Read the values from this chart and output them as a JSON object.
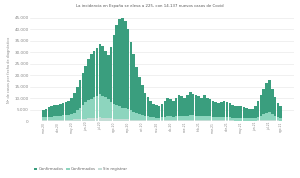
{
  "title": "La incidencia en España se eleva a 225, con 14.137 nuevos casos de Covid",
  "ylabel": "Nº de casos por fecha de diagnóstico",
  "legend_labels": [
    "Confirmados",
    "Confirmados",
    "Sin registrar"
  ],
  "colors": {
    "confirmed": "#3a9e7e",
    "probable": "#8dd5be",
    "no_registered": "#c5ddd6"
  },
  "ylim": [
    0,
    45000
  ],
  "yticks": [
    0,
    5000,
    10000,
    15000,
    20000,
    25000,
    30000,
    35000,
    40000,
    45000
  ],
  "background": "#ffffff",
  "n_bars": 85,
  "confirmed_data": [
    3200,
    3600,
    4100,
    4500,
    4800,
    5000,
    5300,
    5500,
    5800,
    6200,
    7000,
    8500,
    10000,
    12000,
    14000,
    16000,
    18000,
    19500,
    20000,
    21000,
    22000,
    21500,
    20000,
    19000,
    24000,
    30000,
    35000,
    38000,
    39000,
    38000,
    35000,
    30000,
    25000,
    20000,
    16000,
    13000,
    10000,
    8500,
    7000,
    6000,
    5500,
    5000,
    6000,
    7000,
    8000,
    7500,
    7000,
    8000,
    9000,
    8500,
    8000,
    9000,
    10000,
    9500,
    9000,
    8500,
    8000,
    9000,
    8000,
    7500,
    7000,
    6500,
    6000,
    6500,
    7000,
    6500,
    6000,
    5500,
    5000,
    5200,
    5000,
    4800,
    4500,
    4200,
    4000,
    5000,
    7000,
    9000,
    11000,
    13000,
    14000,
    11000,
    8000,
    6000,
    5000
  ],
  "probable_data": [
    1200,
    1300,
    1400,
    1500,
    1600,
    1700,
    1800,
    1900,
    2000,
    2100,
    2500,
    3000,
    4000,
    5000,
    6000,
    7000,
    8000,
    8500,
    9000,
    9500,
    10000,
    9500,
    9000,
    8500,
    7000,
    6500,
    6000,
    5500,
    5000,
    4800,
    4500,
    4000,
    3500,
    3000,
    2500,
    2200,
    1800,
    1600,
    1400,
    1300,
    1200,
    1100,
    1300,
    1500,
    1800,
    1700,
    1600,
    1800,
    2000,
    1900,
    1800,
    2000,
    2200,
    2100,
    2000,
    1900,
    1800,
    2000,
    1800,
    1700,
    1600,
    1500,
    1400,
    1500,
    1600,
    1500,
    1400,
    1300,
    1200,
    1250,
    1200,
    1150,
    1100,
    1050,
    1000,
    1200,
    1600,
    2000,
    2500,
    3000,
    3200,
    2600,
    2000,
    1500,
    1200
  ],
  "noreg_data": [
    400,
    420,
    440,
    460,
    480,
    500,
    520,
    540,
    560,
    580,
    600,
    700,
    800,
    900,
    1000,
    1100,
    1200,
    1300,
    1400,
    1500,
    1600,
    1500,
    1400,
    1300,
    1200,
    1100,
    1000,
    900,
    800,
    750,
    700,
    650,
    600,
    550,
    500,
    450,
    400,
    380,
    360,
    340,
    320,
    300,
    320,
    340,
    380,
    360,
    340,
    360,
    380,
    360,
    340,
    360,
    400,
    380,
    360,
    340,
    320,
    360,
    340,
    320,
    300,
    280,
    260,
    280,
    300,
    280,
    260,
    240,
    220,
    230,
    220,
    210,
    200,
    190,
    180,
    220,
    300,
    380,
    460,
    540,
    580,
    460,
    340,
    260,
    200
  ],
  "xtick_positions": [
    0,
    5,
    10,
    15,
    20,
    25,
    30,
    35,
    40,
    45,
    50,
    55,
    60,
    65,
    70,
    75,
    80,
    84
  ],
  "xtick_labels": [
    "mar-20",
    "abr-20",
    "may-20",
    "jun-20",
    "jul-20",
    "ago-20",
    "sep-20",
    "oct-20",
    "nov-20",
    "dic-20",
    "ene-21",
    "feb-21",
    "mar-21",
    "abr-21",
    "may-21",
    "jun-21",
    "jul-21",
    "ago-21"
  ]
}
